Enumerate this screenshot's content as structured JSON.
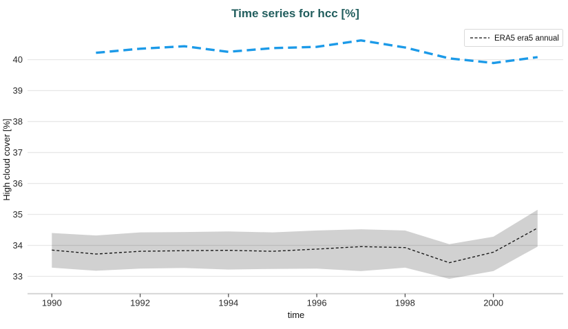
{
  "chart_data": {
    "type": "line",
    "title": "Time series for hcc [%]",
    "xlabel": "time",
    "ylabel": "High cloud cover [%]",
    "legend": {
      "position": "top-right",
      "entries": [
        "ERA5 era5 annual"
      ]
    },
    "x_ticks": [
      1990,
      1992,
      1994,
      1996,
      1998,
      2000
    ],
    "y_ticks": [
      33,
      34,
      35,
      36,
      37,
      38,
      39,
      40
    ],
    "xlim": [
      1989.45,
      2001.58
    ],
    "ylim": [
      32.44,
      41.08
    ],
    "grid": true,
    "background": "#ffffff",
    "colors": {
      "title": "#215d5d",
      "grid": "#e7e7e7",
      "axis_line": "#d2d2d2",
      "x_tick_mark": "#444444",
      "tick_label": "#2b2b2b",
      "band": "rgba(0,0,0,0.18)"
    },
    "series": [
      {
        "name": "era5-annual-with-band",
        "label": "ERA5 era5 annual",
        "style": {
          "color": "#1a1a1a",
          "dash": [
            4,
            3
          ],
          "width": 1.4
        },
        "x": [
          1990,
          1991,
          1992,
          1993,
          1994,
          1995,
          1996,
          1997,
          1998,
          1999,
          2000,
          2001
        ],
        "y": [
          33.85,
          33.72,
          33.81,
          33.83,
          33.84,
          33.81,
          33.88,
          33.96,
          33.93,
          33.44,
          33.78,
          34.56
        ],
        "band_upper": [
          34.4,
          34.32,
          34.42,
          34.43,
          34.45,
          34.42,
          34.48,
          34.52,
          34.48,
          34.04,
          34.28,
          35.15
        ],
        "band_lower": [
          33.28,
          33.18,
          33.25,
          33.27,
          33.22,
          33.24,
          33.25,
          33.17,
          33.28,
          32.92,
          33.17,
          33.96
        ]
      },
      {
        "name": "blue-dashed-annual",
        "label": "",
        "style": {
          "color": "#1c9ae8",
          "dash": [
            13,
            7
          ],
          "width": 3.4
        },
        "x": [
          1991,
          1992,
          1993,
          1994,
          1995,
          1996,
          1997,
          1998,
          1999,
          2000,
          2001
        ],
        "y": [
          40.22,
          40.35,
          40.43,
          40.25,
          40.37,
          40.41,
          40.62,
          40.39,
          40.04,
          39.89,
          40.08
        ]
      }
    ]
  }
}
